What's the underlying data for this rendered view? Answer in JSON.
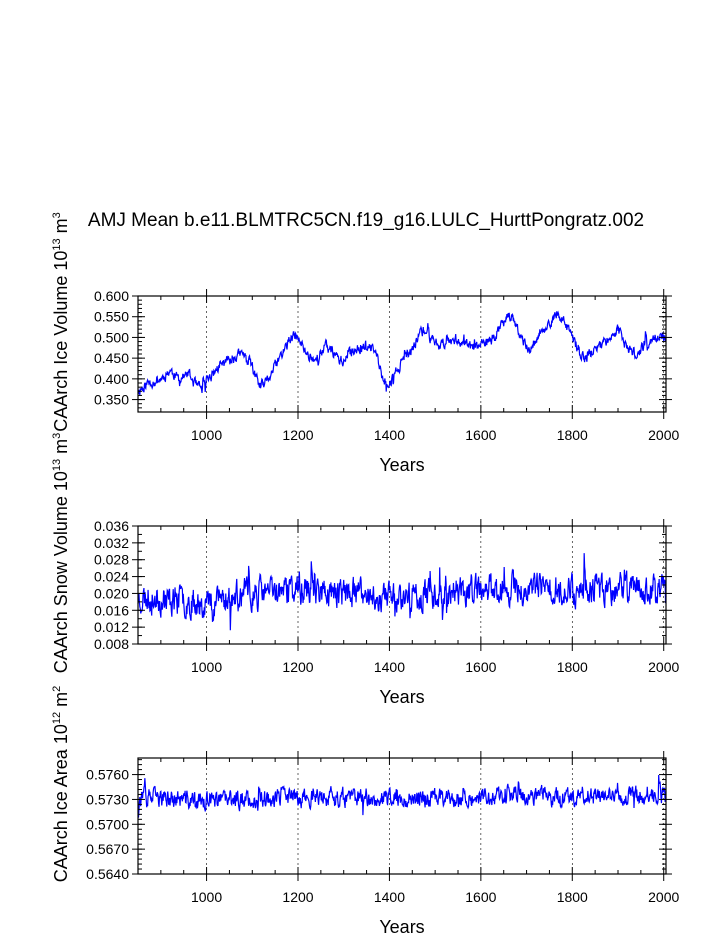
{
  "title": "AMJ Mean b.e11.BLMTRC5CN.f19_g16.LULC_HurttPongratz.002",
  "line_color": "#0000ff",
  "chart_data": [
    {
      "type": "line",
      "ylabel": "CAArch Ice Volume 10",
      "ylabel_exp": "13",
      "ylabel_unit": " m",
      "ylabel_unit_exp": "3",
      "xlabel": "Years",
      "xlim": [
        850,
        2005
      ],
      "ylim": [
        0.32,
        0.6
      ],
      "xticks": [
        1000,
        1200,
        1400,
        1600,
        1800,
        2000
      ],
      "yticks": [
        0.35,
        0.4,
        0.45,
        0.5,
        0.55,
        0.6
      ],
      "ytick_labels": [
        "0.350",
        "0.400",
        "0.450",
        "0.500",
        "0.550",
        "0.600"
      ],
      "yminor": 0.01,
      "grid_x": [
        1000,
        1200,
        1400,
        1600,
        1800,
        2000
      ],
      "anchors": [
        [
          850,
          0.37
        ],
        [
          870,
          0.39
        ],
        [
          900,
          0.4
        ],
        [
          920,
          0.42
        ],
        [
          940,
          0.4
        ],
        [
          960,
          0.41
        ],
        [
          980,
          0.38
        ],
        [
          990,
          0.375
        ],
        [
          1000,
          0.4
        ],
        [
          1030,
          0.43
        ],
        [
          1050,
          0.45
        ],
        [
          1080,
          0.46
        ],
        [
          1100,
          0.43
        ],
        [
          1115,
          0.38
        ],
        [
          1130,
          0.39
        ],
        [
          1160,
          0.45
        ],
        [
          1180,
          0.49
        ],
        [
          1195,
          0.505
        ],
        [
          1220,
          0.46
        ],
        [
          1240,
          0.445
        ],
        [
          1260,
          0.48
        ],
        [
          1280,
          0.46
        ],
        [
          1300,
          0.44
        ],
        [
          1320,
          0.47
        ],
        [
          1350,
          0.48
        ],
        [
          1370,
          0.465
        ],
        [
          1385,
          0.4
        ],
        [
          1400,
          0.385
        ],
        [
          1420,
          0.43
        ],
        [
          1450,
          0.47
        ],
        [
          1470,
          0.52
        ],
        [
          1490,
          0.5
        ],
        [
          1510,
          0.48
        ],
        [
          1540,
          0.5
        ],
        [
          1560,
          0.49
        ],
        [
          1580,
          0.475
        ],
        [
          1600,
          0.48
        ],
        [
          1630,
          0.5
        ],
        [
          1660,
          0.56
        ],
        [
          1680,
          0.52
        ],
        [
          1700,
          0.475
        ],
        [
          1720,
          0.49
        ],
        [
          1740,
          0.52
        ],
        [
          1760,
          0.55
        ],
        [
          1780,
          0.54
        ],
        [
          1800,
          0.5
        ],
        [
          1820,
          0.45
        ],
        [
          1840,
          0.46
        ],
        [
          1860,
          0.48
        ],
        [
          1880,
          0.5
        ],
        [
          1900,
          0.52
        ],
        [
          1920,
          0.47
        ],
        [
          1940,
          0.46
        ],
        [
          1960,
          0.48
        ],
        [
          1980,
          0.5
        ],
        [
          2005,
          0.5
        ]
      ],
      "noise": 0.012,
      "seed": 11
    },
    {
      "type": "line",
      "ylabel": "CAArch Snow Volume 10",
      "ylabel_exp": "13",
      "ylabel_unit": " m",
      "ylabel_unit_exp": "3",
      "xlabel": "Years",
      "xlim": [
        850,
        2005
      ],
      "ylim": [
        0.008,
        0.036
      ],
      "xticks": [
        1000,
        1200,
        1400,
        1600,
        1800,
        2000
      ],
      "yticks": [
        0.008,
        0.012,
        0.016,
        0.02,
        0.024,
        0.028,
        0.032,
        0.036
      ],
      "ytick_labels": [
        "0.008",
        "0.012",
        "0.016",
        "0.020",
        "0.024",
        "0.028",
        "0.032",
        "0.036"
      ],
      "yminor": 0.002,
      "grid_x": [
        1000,
        1200,
        1400,
        1600,
        1800,
        2000
      ],
      "anchors": [
        [
          850,
          0.019
        ],
        [
          1000,
          0.018
        ],
        [
          1100,
          0.02
        ],
        [
          1200,
          0.021
        ],
        [
          1400,
          0.019
        ],
        [
          1600,
          0.021
        ],
        [
          1800,
          0.021
        ],
        [
          2005,
          0.021
        ]
      ],
      "noise": 0.0032,
      "seed": 23
    },
    {
      "type": "line",
      "ylabel": "CAArch Ice Area 10",
      "ylabel_exp": "12",
      "ylabel_unit": " m",
      "ylabel_unit_exp": "2",
      "xlabel": "Years",
      "xlim": [
        850,
        2005
      ],
      "ylim": [
        0.564,
        0.578
      ],
      "xticks": [
        1000,
        1200,
        1400,
        1600,
        1800,
        2000
      ],
      "yticks": [
        0.564,
        0.567,
        0.57,
        0.573,
        0.576
      ],
      "ytick_labels": [
        "0.5640",
        "0.5670",
        "0.5700",
        "0.5730",
        "0.5760"
      ],
      "yminor": 0.0006,
      "grid_x": [
        1000,
        1200,
        1400,
        1600,
        1800,
        2000
      ],
      "anchors": [
        [
          850,
          0.5733
        ],
        [
          1000,
          0.5728
        ],
        [
          1200,
          0.5733
        ],
        [
          1400,
          0.5731
        ],
        [
          1600,
          0.5734
        ],
        [
          1800,
          0.5734
        ],
        [
          2005,
          0.5735
        ]
      ],
      "noise": 0.001,
      "seed": 37
    }
  ]
}
